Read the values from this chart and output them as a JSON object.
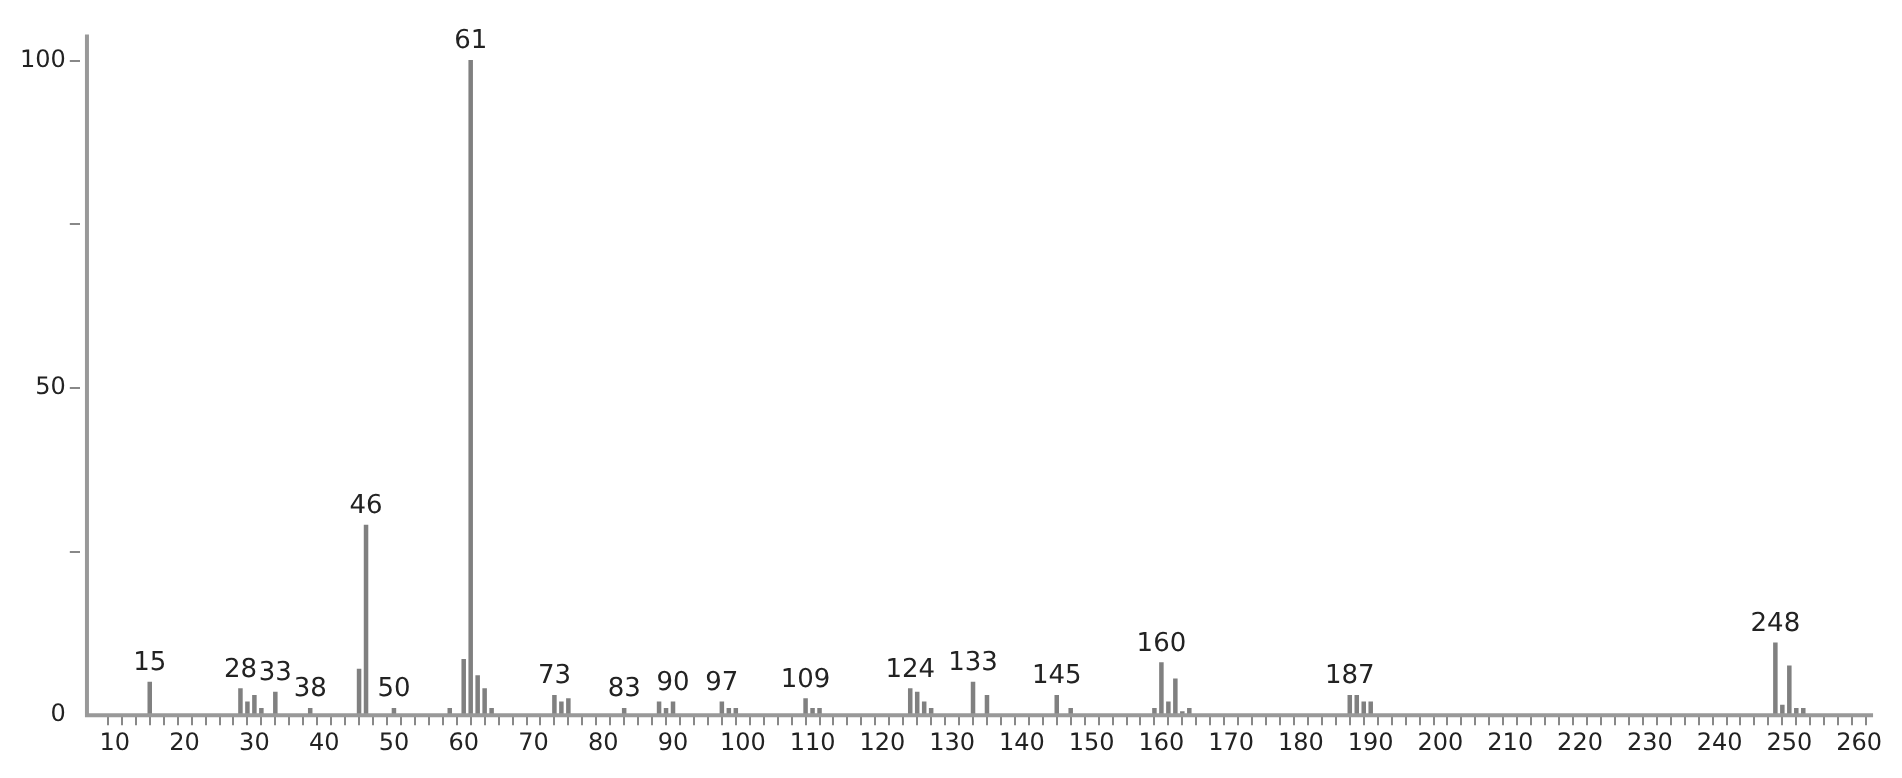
{
  "chart_data": {
    "type": "bar",
    "color": "#808080",
    "x": [
      15,
      28,
      29,
      30,
      31,
      33,
      38,
      45,
      46,
      50,
      58,
      60,
      61,
      62,
      63,
      64,
      73,
      74,
      75,
      83,
      88,
      89,
      90,
      97,
      98,
      99,
      109,
      110,
      111,
      124,
      125,
      126,
      127,
      133,
      135,
      145,
      147,
      159,
      160,
      161,
      162,
      163,
      164,
      187,
      188,
      189,
      190,
      248,
      249,
      250,
      251,
      252
    ],
    "values": [
      5,
      4,
      2,
      3,
      1,
      3.5,
      1,
      7,
      29,
      1,
      1,
      8.5,
      100,
      6,
      4,
      1,
      3,
      2,
      2.5,
      1,
      2,
      1,
      2,
      2,
      1,
      1,
      2.5,
      1,
      1,
      4,
      3.5,
      2,
      1,
      5,
      3,
      3,
      1,
      1,
      8,
      2,
      5.5,
      0.5,
      1,
      3,
      3,
      2,
      2,
      11,
      1.5,
      7.5,
      1,
      1
    ],
    "xlim": [
      6,
      262
    ],
    "xticks": [
      10,
      {
        "value": 12,
        "label": null
      },
      {
        "value": 14,
        "label": null
      },
      {
        "value": 16,
        "label": null
      },
      {
        "value": 18,
        "label": null
      },
      20,
      {
        "value": 22,
        "label": null
      },
      {
        "value": 24,
        "label": null
      },
      {
        "value": 26,
        "label": null
      },
      {
        "value": 28,
        "label": null
      },
      30,
      {
        "value": 32,
        "label": null
      },
      {
        "value": 34,
        "label": null
      },
      {
        "value": 36,
        "label": null
      },
      {
        "value": 38,
        "label": null
      },
      40,
      {
        "value": 42,
        "label": null
      },
      {
        "value": 44,
        "label": null
      },
      {
        "value": 46,
        "label": null
      },
      {
        "value": 48,
        "label": null
      },
      50,
      {
        "value": 52,
        "label": null
      },
      {
        "value": 54,
        "label": null
      },
      {
        "value": 56,
        "label": null
      },
      {
        "value": 58,
        "label": null
      },
      60,
      {
        "value": 62,
        "label": null
      },
      {
        "value": 64,
        "label": null
      },
      {
        "value": 66,
        "label": null
      },
      {
        "value": 68,
        "label": null
      },
      70,
      {
        "value": 72,
        "label": null
      },
      {
        "value": 74,
        "label": null
      },
      {
        "value": 76,
        "label": null
      },
      {
        "value": 78,
        "label": null
      },
      80,
      {
        "value": 82,
        "label": null
      },
      {
        "value": 84,
        "label": null
      },
      {
        "value": 86,
        "label": null
      },
      {
        "value": 88,
        "label": null
      },
      90,
      {
        "value": 92,
        "label": null
      },
      {
        "value": 94,
        "label": null
      },
      {
        "value": 96,
        "label": null
      },
      {
        "value": 98,
        "label": null
      },
      100,
      {
        "value": 102,
        "label": null
      },
      {
        "value": 104,
        "label": null
      },
      {
        "value": 106,
        "label": null
      },
      {
        "value": 108,
        "label": null
      },
      110,
      {
        "value": 112,
        "label": null
      },
      {
        "value": 114,
        "label": null
      },
      {
        "value": 116,
        "label": null
      },
      {
        "value": 118,
        "label": null
      },
      120,
      {
        "value": 122,
        "label": null
      },
      {
        "value": 124,
        "label": null
      },
      {
        "value": 126,
        "label": null
      },
      {
        "value": 128,
        "label": null
      },
      130,
      {
        "value": 132,
        "label": null
      },
      {
        "value": 134,
        "label": null
      },
      {
        "value": 136,
        "label": null
      },
      {
        "value": 138,
        "label": null
      },
      140,
      {
        "value": 142,
        "label": null
      },
      {
        "value": 144,
        "label": null
      },
      {
        "value": 146,
        "label": null
      },
      {
        "value": 148,
        "label": null
      },
      150,
      {
        "value": 152,
        "label": null
      },
      {
        "value": 154,
        "label": null
      },
      {
        "value": 156,
        "label": null
      },
      {
        "value": 158,
        "label": null
      },
      160,
      {
        "value": 162,
        "label": null
      },
      {
        "value": 164,
        "label": null
      },
      {
        "value": 166,
        "label": null
      },
      {
        "value": 168,
        "label": null
      },
      170,
      {
        "value": 172,
        "label": null
      },
      {
        "value": 174,
        "label": null
      },
      {
        "value": 176,
        "label": null
      },
      {
        "value": 178,
        "label": null
      },
      180,
      {
        "value": 182,
        "label": null
      },
      {
        "value": 184,
        "label": null
      },
      {
        "value": 186,
        "label": null
      },
      {
        "value": 188,
        "label": null
      },
      190,
      {
        "value": 192,
        "label": null
      },
      {
        "value": 194,
        "label": null
      },
      {
        "value": 196,
        "label": null
      },
      {
        "value": 198,
        "label": null
      },
      200,
      {
        "value": 202,
        "label": null
      },
      {
        "value": 204,
        "label": null
      },
      {
        "value": 206,
        "label": null
      },
      {
        "value": 208,
        "label": null
      },
      210,
      {
        "value": 212,
        "label": null
      },
      {
        "value": 214,
        "label": null
      },
      {
        "value": 216,
        "label": null
      },
      {
        "value": 218,
        "label": null
      },
      220,
      {
        "value": 222,
        "label": null
      },
      {
        "value": 224,
        "label": null
      },
      {
        "value": 226,
        "label": null
      },
      {
        "value": 228,
        "label": null
      },
      230,
      {
        "value": 232,
        "label": null
      },
      {
        "value": 234,
        "label": null
      },
      {
        "value": 236,
        "label": null
      },
      {
        "value": 238,
        "label": null
      },
      240,
      {
        "value": 242,
        "label": null
      },
      {
        "value": 244,
        "label": null
      },
      {
        "value": 246,
        "label": null
      },
      {
        "value": 248,
        "label": null
      },
      250,
      {
        "value": 252,
        "label": null
      },
      {
        "value": 254,
        "label": null
      },
      {
        "value": 256,
        "label": null
      },
      {
        "value": 258,
        "label": null
      },
      260
    ],
    "ylim": [
      0,
      104
    ],
    "yticks": [
      0,
      {
        "value": 25,
        "label": null
      },
      50,
      {
        "value": 75,
        "label": null
      },
      100
    ],
    "grid": false,
    "legend": false,
    "annotations": [
      {
        "text": "15",
        "x": 15,
        "y": 5
      },
      {
        "text": "28",
        "x": 28,
        "y": 4
      },
      {
        "text": "33",
        "x": 33,
        "y": 3.5
      },
      {
        "text": "38",
        "x": 38,
        "y": 1
      },
      {
        "text": "46",
        "x": 46,
        "y": 29
      },
      {
        "text": "50",
        "x": 50,
        "y": 1
      },
      {
        "text": "61",
        "x": 61,
        "y": 100
      },
      {
        "text": "73",
        "x": 73,
        "y": 3
      },
      {
        "text": "83",
        "x": 83,
        "y": 1
      },
      {
        "text": "90",
        "x": 90,
        "y": 2
      },
      {
        "text": "97",
        "x": 97,
        "y": 2
      },
      {
        "text": "109",
        "x": 109,
        "y": 2.5
      },
      {
        "text": "124",
        "x": 124,
        "y": 4
      },
      {
        "text": "133",
        "x": 133,
        "y": 5
      },
      {
        "text": "145",
        "x": 145,
        "y": 3
      },
      {
        "text": "160",
        "x": 160,
        "y": 8
      },
      {
        "text": "187",
        "x": 187,
        "y": 3
      },
      {
        "text": "248",
        "x": 248,
        "y": 11
      }
    ]
  }
}
